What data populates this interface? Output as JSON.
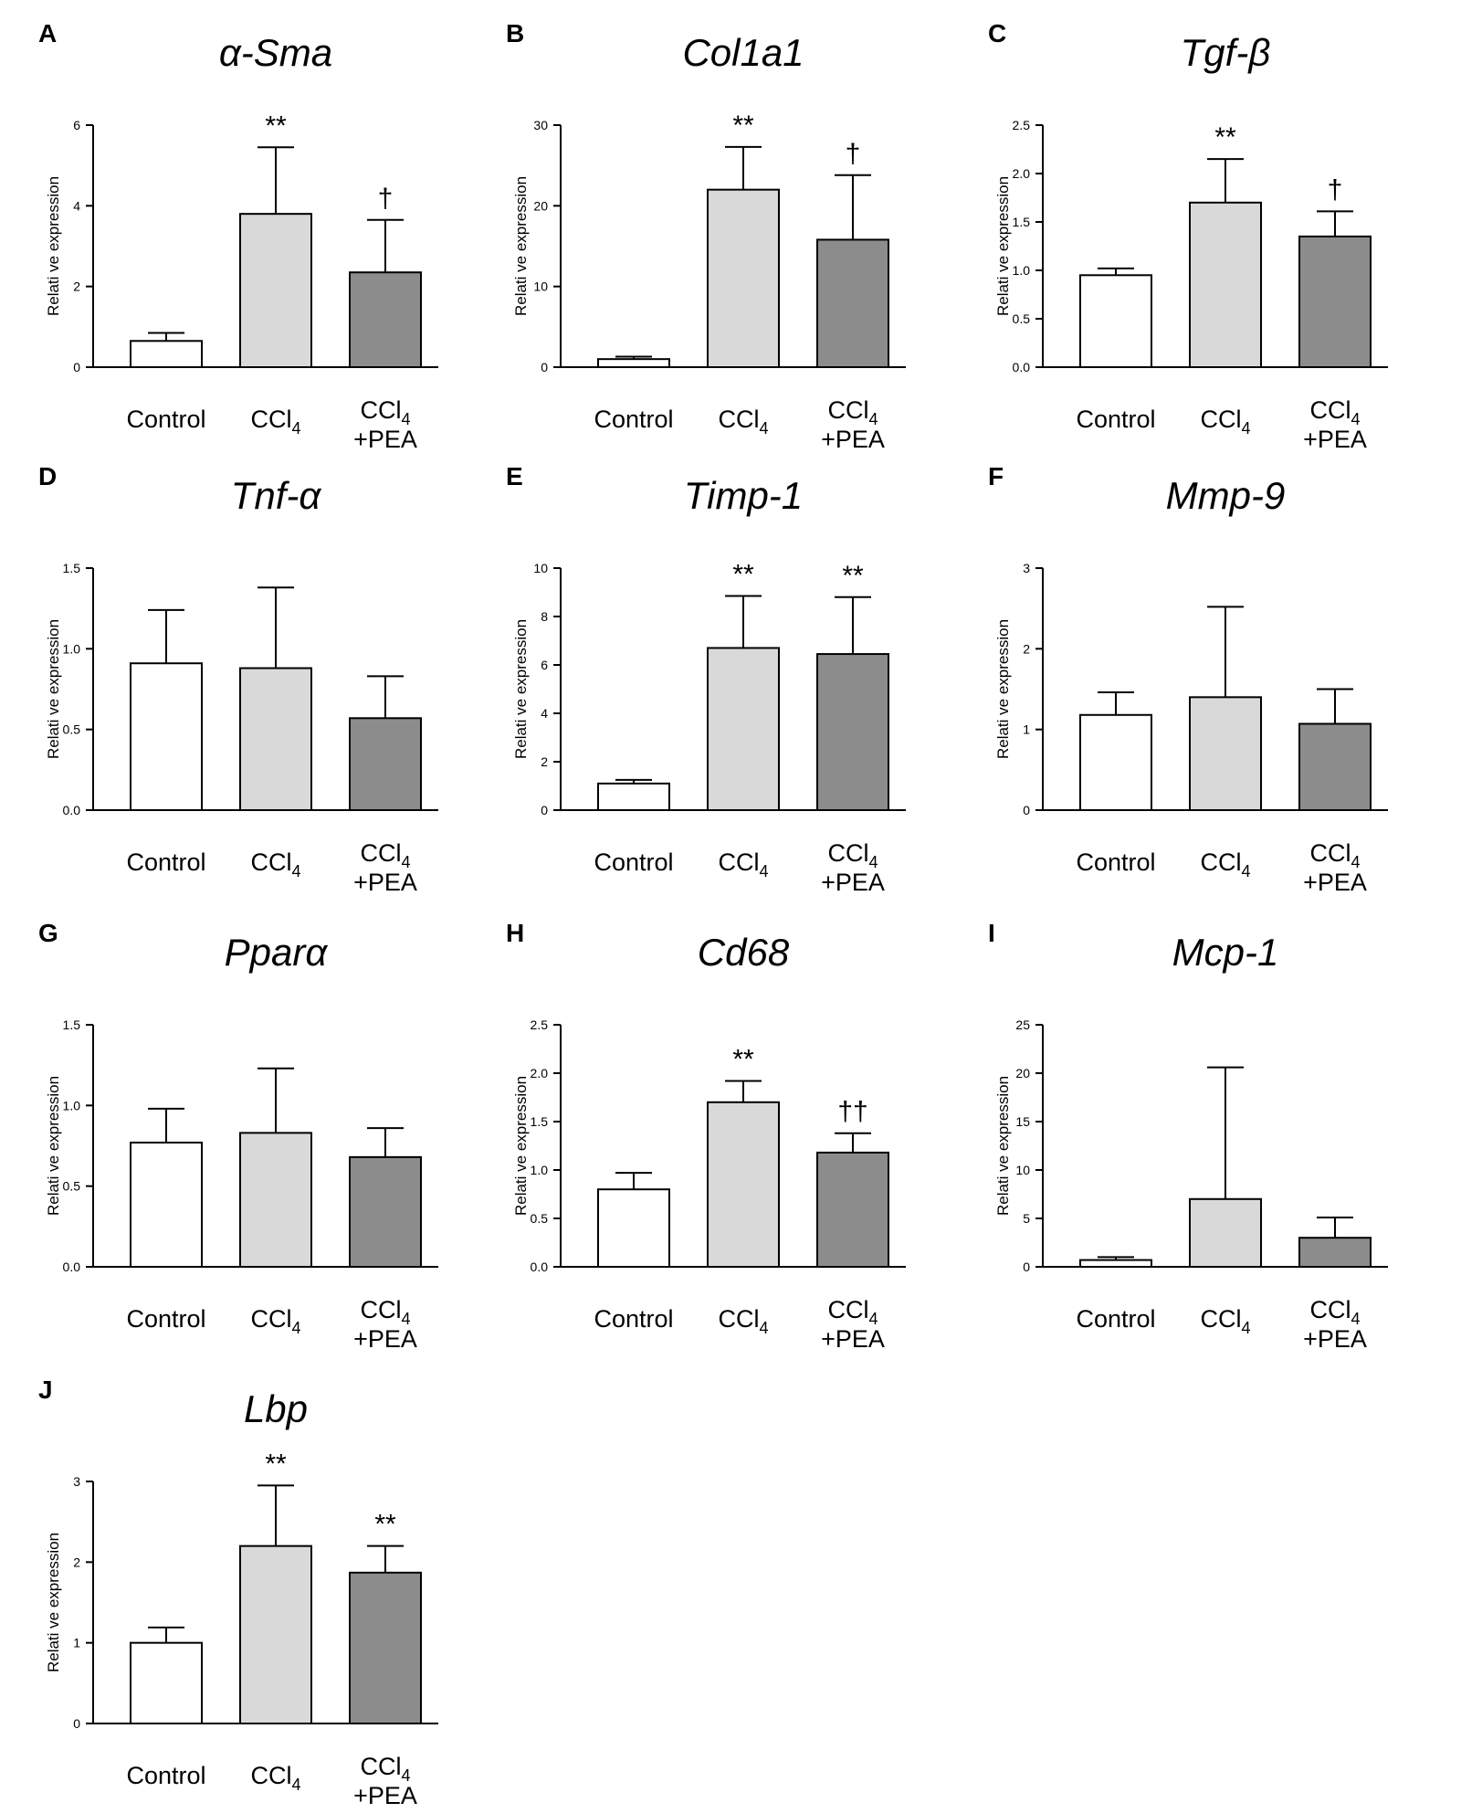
{
  "figure": {
    "bar_colors": [
      "#ffffff",
      "#d9d9d9",
      "#8c8c8c"
    ],
    "category_labels": [
      {
        "main": "Control",
        "sub": "",
        "line2": ""
      },
      {
        "main": "CCl",
        "sub": "4",
        "line2": ""
      },
      {
        "main": "CCl",
        "sub": "4",
        "line2": "+PEA"
      }
    ]
  },
  "chart_data": [
    {
      "panel": "A",
      "title": "α-Sma",
      "type": "bar",
      "ylabel": "Relati ve expression",
      "categories": [
        "Control",
        "CCl4",
        "CCl4 +PEA"
      ],
      "values": [
        0.65,
        3.8,
        2.35
      ],
      "errors": [
        0.2,
        1.65,
        1.3
      ],
      "ylim": [
        0,
        6
      ],
      "yticks": [
        "0",
        "2",
        "4",
        "6"
      ],
      "annotations": [
        "",
        "**",
        "†"
      ]
    },
    {
      "panel": "B",
      "title": "Col1a1",
      "type": "bar",
      "ylabel": "Relati ve expression",
      "categories": [
        "Control",
        "CCl4",
        "CCl4 +PEA"
      ],
      "values": [
        1.0,
        22.0,
        15.8
      ],
      "errors": [
        0.3,
        5.3,
        8.0
      ],
      "ylim": [
        0,
        30
      ],
      "yticks": [
        "0",
        "10",
        "20",
        "30"
      ],
      "annotations": [
        "",
        "**",
        "†"
      ]
    },
    {
      "panel": "C",
      "title": "Tgf-β",
      "type": "bar",
      "ylabel": "Relati ve expression",
      "categories": [
        "Control",
        "CCl4",
        "CCl4 +PEA"
      ],
      "values": [
        0.95,
        1.7,
        1.35
      ],
      "errors": [
        0.07,
        0.45,
        0.26
      ],
      "ylim": [
        0,
        2.5
      ],
      "yticks": [
        "0.0",
        "0.5",
        "1.0",
        "1.5",
        "2.0",
        "2.5"
      ],
      "annotations": [
        "",
        "**",
        "†"
      ]
    },
    {
      "panel": "D",
      "title": "Tnf-α",
      "type": "bar",
      "ylabel": "Relati ve expression",
      "categories": [
        "Control",
        "CCl4",
        "CCl4 +PEA"
      ],
      "values": [
        0.91,
        0.88,
        0.57
      ],
      "errors": [
        0.33,
        0.5,
        0.26
      ],
      "ylim": [
        0,
        1.5
      ],
      "yticks": [
        "0.0",
        "0.5",
        "1.0",
        "1.5"
      ],
      "annotations": [
        "",
        "",
        ""
      ]
    },
    {
      "panel": "E",
      "title": "Timp-1",
      "type": "bar",
      "ylabel": "Relati ve expression",
      "categories": [
        "Control",
        "CCl4",
        "CCl4 +PEA"
      ],
      "values": [
        1.1,
        6.7,
        6.45
      ],
      "errors": [
        0.15,
        2.15,
        2.35
      ],
      "ylim": [
        0,
        10
      ],
      "yticks": [
        "0",
        "2",
        "4",
        "6",
        "8",
        "10"
      ],
      "annotations": [
        "",
        "**",
        "**"
      ]
    },
    {
      "panel": "F",
      "title": "Mmp-9",
      "type": "bar",
      "ylabel": "Relati ve expression",
      "categories": [
        "Control",
        "CCl4",
        "CCl4 +PEA"
      ],
      "values": [
        1.18,
        1.4,
        1.07
      ],
      "errors": [
        0.28,
        1.12,
        0.43
      ],
      "ylim": [
        0,
        3
      ],
      "yticks": [
        "0",
        "1",
        "2",
        "3"
      ],
      "annotations": [
        "",
        "",
        ""
      ]
    },
    {
      "panel": "G",
      "title": "Pparα",
      "type": "bar",
      "ylabel": "Relati ve expression",
      "categories": [
        "Control",
        "CCl4",
        "CCl4 +PEA"
      ],
      "values": [
        0.77,
        0.83,
        0.68
      ],
      "errors": [
        0.21,
        0.4,
        0.18
      ],
      "ylim": [
        0,
        1.5
      ],
      "yticks": [
        "0.0",
        "0.5",
        "1.0",
        "1.5"
      ],
      "annotations": [
        "",
        "",
        ""
      ]
    },
    {
      "panel": "H",
      "title": "Cd68",
      "type": "bar",
      "ylabel": "Relati ve expression",
      "categories": [
        "Control",
        "CCl4",
        "CCl4 +PEA"
      ],
      "values": [
        0.8,
        1.7,
        1.18
      ],
      "errors": [
        0.17,
        0.22,
        0.2
      ],
      "ylim": [
        0,
        2.5
      ],
      "yticks": [
        "0.0",
        "0.5",
        "1.0",
        "1.5",
        "2.0",
        "2.5"
      ],
      "annotations": [
        "",
        "**",
        "††"
      ]
    },
    {
      "panel": "I",
      "title": "Mcp-1",
      "type": "bar",
      "ylabel": "Relati ve expression",
      "categories": [
        "Control",
        "CCl4",
        "CCl4 +PEA"
      ],
      "values": [
        0.7,
        7.0,
        3.0
      ],
      "errors": [
        0.3,
        13.6,
        2.1
      ],
      "ylim": [
        0,
        25
      ],
      "yticks": [
        "0",
        "5",
        "10",
        "15",
        "20",
        "25"
      ],
      "annotations": [
        "",
        "",
        ""
      ]
    },
    {
      "panel": "J",
      "title": "Lbp",
      "type": "bar",
      "ylabel": "Relati ve expression",
      "categories": [
        "Control",
        "CCl4",
        "CCl4 +PEA"
      ],
      "values": [
        1.0,
        2.2,
        1.87
      ],
      "errors": [
        0.19,
        0.75,
        0.33
      ],
      "ylim": [
        0,
        3
      ],
      "yticks": [
        "0",
        "1",
        "2",
        "3"
      ],
      "annotations": [
        "",
        "**",
        "**"
      ]
    }
  ]
}
